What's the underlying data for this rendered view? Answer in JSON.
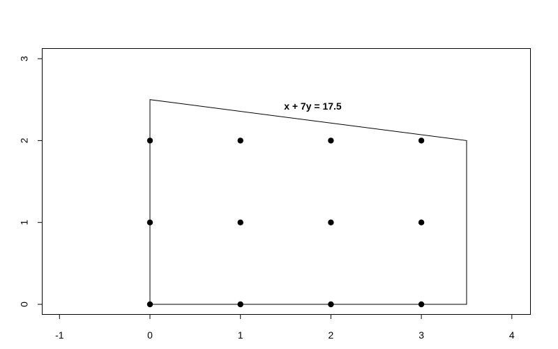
{
  "chart_data": {
    "type": "scatter",
    "title": "",
    "xlabel": "",
    "ylabel": "",
    "xlim": [
      -1.2,
      4.2
    ],
    "ylim": [
      -0.12,
      3.12
    ],
    "x_ticks": [
      "-1",
      "0",
      "1",
      "2",
      "3",
      "4"
    ],
    "y_ticks": [
      "0",
      "1",
      "2",
      "3"
    ],
    "grid": false,
    "points": {
      "x": [
        0,
        1,
        2,
        3,
        0,
        1,
        2,
        3,
        0,
        1,
        2,
        3
      ],
      "y": [
        0,
        0,
        0,
        0,
        1,
        1,
        1,
        1,
        2,
        2,
        2,
        2
      ]
    },
    "polygon": {
      "x": [
        0,
        0,
        3.5,
        3.5
      ],
      "y": [
        0,
        2.5,
        2,
        0
      ]
    },
    "annotations": [
      {
        "text": "x + 7y = 17.5",
        "x": 1.8,
        "y": 2.41
      }
    ],
    "colors": {
      "points": "#000000",
      "line": "#000000"
    }
  }
}
